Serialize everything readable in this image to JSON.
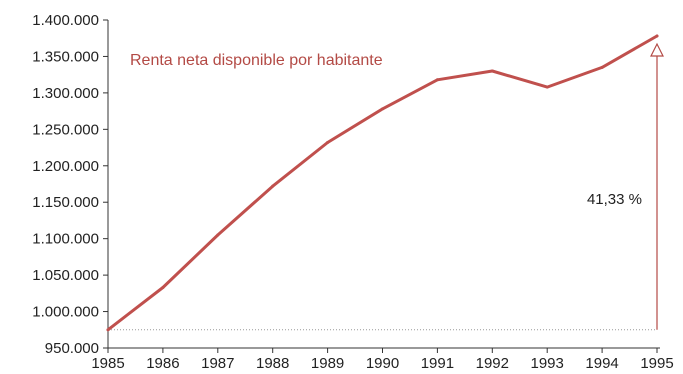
{
  "chart_data": {
    "type": "line",
    "x": [
      1985,
      1986,
      1987,
      1988,
      1989,
      1990,
      1991,
      1992,
      1993,
      1994,
      1995
    ],
    "series": [
      {
        "name": "Renta neta disponible por habitante",
        "values": [
          975000,
          1033000,
          1105000,
          1172000,
          1232000,
          1278000,
          1318000,
          1330000,
          1308000,
          1335000,
          1378000
        ]
      }
    ],
    "x_tick_labels": [
      "1985",
      "1986",
      "1987",
      "1988",
      "1989",
      "1990",
      "1991",
      "1992",
      "1993",
      "1994",
      "1995"
    ],
    "y_tick_values": [
      950000,
      1000000,
      1050000,
      1100000,
      1150000,
      1200000,
      1250000,
      1300000,
      1350000,
      1400000
    ],
    "y_tick_labels": [
      "950.000",
      "1.000.000",
      "1.050.000",
      "1.100.000",
      "1.150.000",
      "1.200.000",
      "1.250.000",
      "1.300.000",
      "1.350.000",
      "1.400.000"
    ],
    "ylim": [
      950000,
      1400000
    ],
    "xlim": [
      1985,
      1995
    ],
    "grid": false,
    "annotation": {
      "text": "41,33 %",
      "arrow_x": 1995,
      "arrow_from": 975000,
      "arrow_to": 1378000
    },
    "colors": {
      "line": "#c0504d",
      "label": "#b34a45",
      "arrow": "#b34a45",
      "axis": "#333333",
      "baseline": "#999999"
    }
  }
}
